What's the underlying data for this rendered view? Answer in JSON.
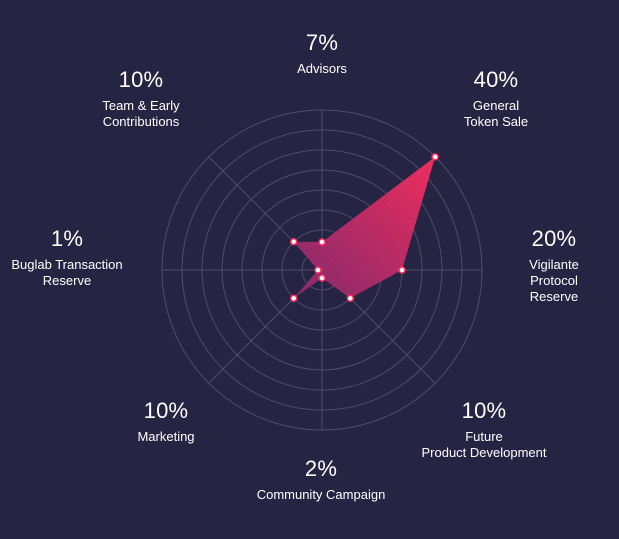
{
  "chart_data": {
    "type": "radar",
    "title": "",
    "colors": {
      "background": "#262443",
      "grid": "#5b5a78",
      "fill_start": "#ff2d5e",
      "fill_end": "#8a2a6e",
      "point": "#ffffff"
    },
    "grid_rings": 8,
    "max_value": 40,
    "categories": [
      {
        "name": "Advisors",
        "value_label": "7%",
        "value": 7
      },
      {
        "name": "General\nToken Sale",
        "value_label": "40%",
        "value": 40
      },
      {
        "name": "Vigilante\nProtocol Reserve",
        "value_label": "20%",
        "value": 20
      },
      {
        "name": "Future\nProduct Development",
        "value_label": "10%",
        "value": 10
      },
      {
        "name": "Community Campaign",
        "value_label": "2%",
        "value": 2
      },
      {
        "name": "Marketing",
        "value_label": "10%",
        "value": 10
      },
      {
        "name": "Buglab Transaction\nReserve",
        "value_label": "1%",
        "value": 1
      },
      {
        "name": "Team & Early\nContributions",
        "value_label": "10%",
        "value": 10
      }
    ]
  }
}
